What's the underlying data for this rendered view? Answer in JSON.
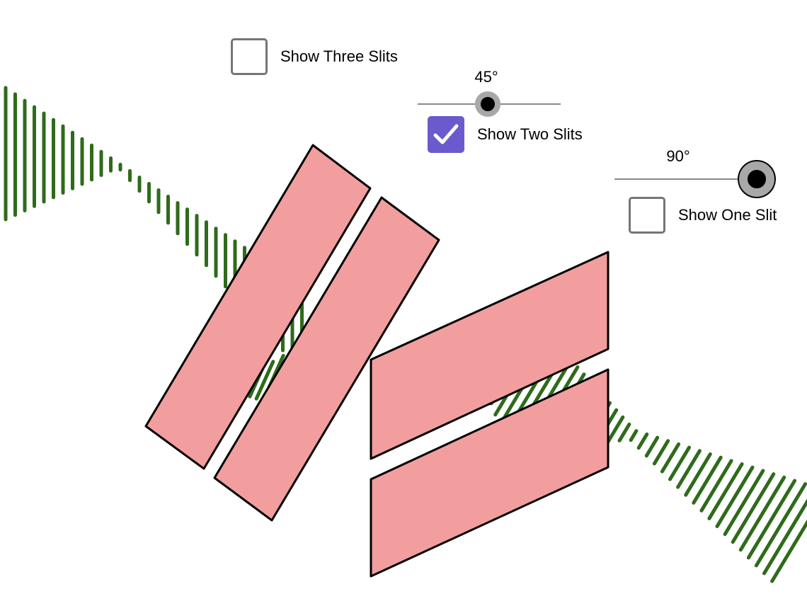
{
  "controls": {
    "three_slits": {
      "label": "Show Three Slits",
      "checked": false
    },
    "two_slits": {
      "label": "Show Two Slits",
      "checked": true
    },
    "one_slit": {
      "label": "Show One Slit",
      "checked": false
    }
  },
  "sliders": {
    "angle_a": {
      "value_text": "45°",
      "value": 45,
      "min": 0,
      "max": 90
    },
    "angle_b": {
      "value_text": "90°",
      "value": 90,
      "min": 0,
      "max": 90
    }
  },
  "colors": {
    "slit_fill": "#f29e9e",
    "slit_stroke": "#000000",
    "wave": "#2e6b1a",
    "checkbox_checked": "#6a5acd",
    "checkbox_border": "#757575"
  }
}
